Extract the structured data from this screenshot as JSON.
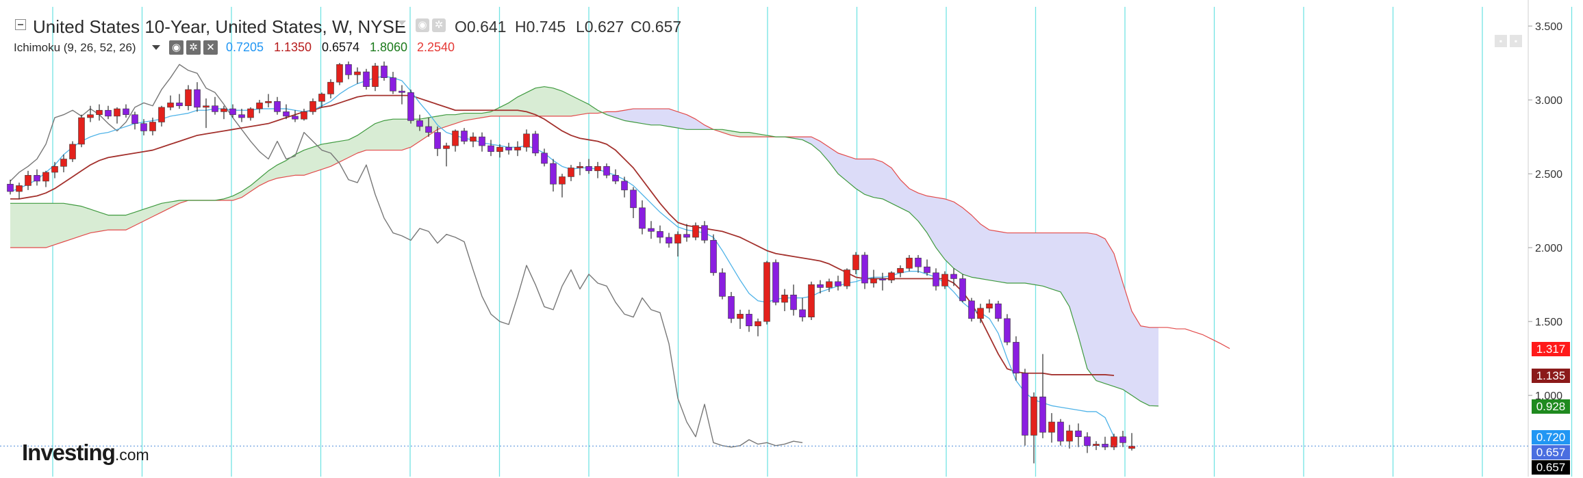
{
  "header": {
    "title": "United States 10-Year, United States, W, NYSE",
    "ohlc": {
      "open": "O0.641",
      "high": "H0.745",
      "low": "L0.627",
      "close": "C0.657"
    },
    "indicator_label": "Ichimoku (9, 26, 52, 26)",
    "indicator_values": [
      {
        "text": "0.7205",
        "color": "#2196f3"
      },
      {
        "text": "1.1350",
        "color": "#b71c1c"
      },
      {
        "text": "0.6574",
        "color": "#111111"
      },
      {
        "text": "1.8060",
        "color": "#1b7a1b"
      },
      {
        "text": "2.2540",
        "color": "#e53935"
      }
    ]
  },
  "icons": {
    "collapse": "collapse-icon",
    "settings": "gear-icon",
    "visibility": "eye-icon",
    "close": "close-icon"
  },
  "logo": {
    "brand": "Investing",
    "suffix": ".com"
  },
  "price_badges": [
    {
      "text": "1.317",
      "value": 1.317,
      "bg": "#ff1a1a",
      "fg": "#ffffff"
    },
    {
      "text": "1.135",
      "value": 1.135,
      "bg": "#8b1a1a",
      "fg": "#ffffff"
    },
    {
      "text": "0.928",
      "value": 0.928,
      "bg": "#1f8a1f",
      "fg": "#ffffff"
    },
    {
      "text": "0.720",
      "value": 0.72,
      "bg": "#2196f3",
      "fg": "#ffffff"
    },
    {
      "text": "0.657",
      "value": 0.657,
      "bg": "#4a6ee0",
      "fg": "#ffffff"
    },
    {
      "text": "0.657",
      "value": 0.657,
      "bg": "#000000",
      "fg": "#ffffff"
    }
  ],
  "colors": {
    "up_candle": "#e3211c",
    "down_candle": "#8a1ee0",
    "tenkan": "#4fb3e8",
    "kijun": "#a3302c",
    "chikou": "#777777",
    "senkou_a": "#3f9a3f",
    "senkou_b": "#e24a4a",
    "kumo_bull": "#d8ecd4",
    "kumo_bear": "#dcdcf8",
    "vertical_grid": "#72e3e3"
  },
  "chart_data": {
    "type": "line",
    "title": "United States 10-Year, United States, W, NYSE",
    "y_axis": {
      "ticks": [
        "3.500",
        "3.000",
        "2.500",
        "2.000",
        "1.500",
        "1.000"
      ],
      "tick_values": [
        3.5,
        3.0,
        2.5,
        2.0,
        1.5,
        1.0
      ],
      "range": [
        0.45,
        3.63
      ],
      "position": "right"
    },
    "vertical_gridlines": 19,
    "horizontal_gridlines": false,
    "candles": [
      [
        2.43,
        2.46,
        2.36,
        2.38
      ],
      [
        2.38,
        2.44,
        2.33,
        2.42
      ],
      [
        2.42,
        2.52,
        2.39,
        2.49
      ],
      [
        2.49,
        2.53,
        2.42,
        2.45
      ],
      [
        2.45,
        2.52,
        2.41,
        2.51
      ],
      [
        2.51,
        2.58,
        2.47,
        2.55
      ],
      [
        2.55,
        2.63,
        2.51,
        2.6
      ],
      [
        2.6,
        2.72,
        2.58,
        2.7
      ],
      [
        2.7,
        2.9,
        2.68,
        2.88
      ],
      [
        2.88,
        2.96,
        2.85,
        2.9
      ],
      [
        2.9,
        2.97,
        2.86,
        2.93
      ],
      [
        2.93,
        2.96,
        2.87,
        2.89
      ],
      [
        2.89,
        2.95,
        2.84,
        2.94
      ],
      [
        2.94,
        2.97,
        2.88,
        2.9
      ],
      [
        2.9,
        2.92,
        2.8,
        2.84
      ],
      [
        2.84,
        2.87,
        2.76,
        2.79
      ],
      [
        2.79,
        2.88,
        2.76,
        2.85
      ],
      [
        2.85,
        2.96,
        2.82,
        2.95
      ],
      [
        2.95,
        3.03,
        2.93,
        2.98
      ],
      [
        2.98,
        3.04,
        2.94,
        2.96
      ],
      [
        2.96,
        3.1,
        2.93,
        3.07
      ],
      [
        3.07,
        3.12,
        2.92,
        2.95
      ],
      [
        2.95,
        3.01,
        2.81,
        2.96
      ],
      [
        2.96,
        3.02,
        2.9,
        2.92
      ],
      [
        2.92,
        2.96,
        2.87,
        2.94
      ],
      [
        2.94,
        2.97,
        2.88,
        2.9
      ],
      [
        2.9,
        2.94,
        2.85,
        2.88
      ],
      [
        2.88,
        2.95,
        2.86,
        2.94
      ],
      [
        2.94,
        3.0,
        2.91,
        2.98
      ],
      [
        2.98,
        3.04,
        2.95,
        2.99
      ],
      [
        2.99,
        3.02,
        2.9,
        2.92
      ],
      [
        2.92,
        2.97,
        2.87,
        2.89
      ],
      [
        2.89,
        2.93,
        2.85,
        2.87
      ],
      [
        2.87,
        2.94,
        2.86,
        2.92
      ],
      [
        2.92,
        3.01,
        2.9,
        2.99
      ],
      [
        2.99,
        3.05,
        2.95,
        3.04
      ],
      [
        3.04,
        3.14,
        3.01,
        3.12
      ],
      [
        3.12,
        3.25,
        3.1,
        3.24
      ],
      [
        3.24,
        3.26,
        3.14,
        3.17
      ],
      [
        3.17,
        3.22,
        3.11,
        3.19
      ],
      [
        3.19,
        3.21,
        3.07,
        3.09
      ],
      [
        3.09,
        3.25,
        3.06,
        3.23
      ],
      [
        3.23,
        3.26,
        3.13,
        3.15
      ],
      [
        3.15,
        3.19,
        3.04,
        3.06
      ],
      [
        3.06,
        3.1,
        2.97,
        3.05
      ],
      [
        3.05,
        3.07,
        2.84,
        2.86
      ],
      [
        2.86,
        2.9,
        2.79,
        2.82
      ],
      [
        2.82,
        2.88,
        2.75,
        2.78
      ],
      [
        2.78,
        2.82,
        2.62,
        2.67
      ],
      [
        2.67,
        2.71,
        2.55,
        2.69
      ],
      [
        2.69,
        2.8,
        2.65,
        2.79
      ],
      [
        2.79,
        2.81,
        2.7,
        2.72
      ],
      [
        2.72,
        2.78,
        2.68,
        2.75
      ],
      [
        2.75,
        2.78,
        2.65,
        2.69
      ],
      [
        2.69,
        2.73,
        2.62,
        2.65
      ],
      [
        2.65,
        2.7,
        2.61,
        2.68
      ],
      [
        2.68,
        2.71,
        2.63,
        2.66
      ],
      [
        2.66,
        2.72,
        2.62,
        2.68
      ],
      [
        2.68,
        2.8,
        2.65,
        2.77
      ],
      [
        2.77,
        2.79,
        2.62,
        2.64
      ],
      [
        2.64,
        2.67,
        2.55,
        2.57
      ],
      [
        2.57,
        2.6,
        2.38,
        2.43
      ],
      [
        2.43,
        2.5,
        2.34,
        2.48
      ],
      [
        2.48,
        2.56,
        2.45,
        2.54
      ],
      [
        2.54,
        2.58,
        2.49,
        2.55
      ],
      [
        2.55,
        2.6,
        2.5,
        2.52
      ],
      [
        2.52,
        2.58,
        2.47,
        2.55
      ],
      [
        2.55,
        2.57,
        2.47,
        2.49
      ],
      [
        2.49,
        2.53,
        2.43,
        2.45
      ],
      [
        2.45,
        2.48,
        2.34,
        2.39
      ],
      [
        2.39,
        2.41,
        2.2,
        2.27
      ],
      [
        2.27,
        2.32,
        2.09,
        2.13
      ],
      [
        2.13,
        2.18,
        2.06,
        2.11
      ],
      [
        2.11,
        2.15,
        2.03,
        2.07
      ],
      [
        2.07,
        2.1,
        2.0,
        2.03
      ],
      [
        2.03,
        2.11,
        1.94,
        2.09
      ],
      [
        2.09,
        2.16,
        2.04,
        2.07
      ],
      [
        2.07,
        2.17,
        2.05,
        2.15
      ],
      [
        2.15,
        2.18,
        2.03,
        2.05
      ],
      [
        2.05,
        2.09,
        1.81,
        1.83
      ],
      [
        1.83,
        1.86,
        1.65,
        1.67
      ],
      [
        1.67,
        1.7,
        1.49,
        1.52
      ],
      [
        1.52,
        1.58,
        1.45,
        1.55
      ],
      [
        1.55,
        1.58,
        1.43,
        1.47
      ],
      [
        1.47,
        1.52,
        1.4,
        1.5
      ],
      [
        1.5,
        1.91,
        1.48,
        1.9
      ],
      [
        1.9,
        1.92,
        1.61,
        1.63
      ],
      [
        1.63,
        1.72,
        1.57,
        1.68
      ],
      [
        1.68,
        1.75,
        1.54,
        1.58
      ],
      [
        1.58,
        1.66,
        1.5,
        1.53
      ],
      [
        1.53,
        1.77,
        1.51,
        1.75
      ],
      [
        1.75,
        1.78,
        1.69,
        1.73
      ],
      [
        1.73,
        1.79,
        1.7,
        1.77
      ],
      [
        1.77,
        1.81,
        1.71,
        1.74
      ],
      [
        1.74,
        1.86,
        1.72,
        1.85
      ],
      [
        1.85,
        1.97,
        1.82,
        1.95
      ],
      [
        1.95,
        1.97,
        1.72,
        1.76
      ],
      [
        1.76,
        1.85,
        1.73,
        1.79
      ],
      [
        1.79,
        1.83,
        1.71,
        1.78
      ],
      [
        1.78,
        1.84,
        1.76,
        1.83
      ],
      [
        1.83,
        1.88,
        1.8,
        1.86
      ],
      [
        1.86,
        1.95,
        1.84,
        1.93
      ],
      [
        1.93,
        1.95,
        1.83,
        1.87
      ],
      [
        1.87,
        1.92,
        1.81,
        1.83
      ],
      [
        1.83,
        1.86,
        1.71,
        1.74
      ],
      [
        1.74,
        1.84,
        1.72,
        1.82
      ],
      [
        1.82,
        1.86,
        1.74,
        1.79
      ],
      [
        1.79,
        1.82,
        1.63,
        1.64
      ],
      [
        1.64,
        1.66,
        1.5,
        1.52
      ],
      [
        1.52,
        1.62,
        1.49,
        1.59
      ],
      [
        1.59,
        1.65,
        1.56,
        1.62
      ],
      [
        1.62,
        1.64,
        1.5,
        1.52
      ],
      [
        1.52,
        1.55,
        1.34,
        1.36
      ],
      [
        1.36,
        1.4,
        1.1,
        1.15
      ],
      [
        1.15,
        1.18,
        0.66,
        0.73
      ],
      [
        0.73,
        1.02,
        0.54,
        0.99
      ],
      [
        0.99,
        1.28,
        0.71,
        0.75
      ],
      [
        0.75,
        0.88,
        0.68,
        0.82
      ],
      [
        0.82,
        0.84,
        0.66,
        0.69
      ],
      [
        0.69,
        0.8,
        0.64,
        0.76
      ],
      [
        0.76,
        0.81,
        0.65,
        0.72
      ],
      [
        0.72,
        0.75,
        0.61,
        0.66
      ],
      [
        0.66,
        0.69,
        0.63,
        0.67
      ],
      [
        0.67,
        0.72,
        0.63,
        0.65
      ],
      [
        0.65,
        0.74,
        0.63,
        0.72
      ],
      [
        0.72,
        0.76,
        0.65,
        0.68
      ],
      [
        0.641,
        0.745,
        0.627,
        0.657
      ]
    ],
    "chikou": [
      2.45,
      2.51,
      2.55,
      2.6,
      2.7,
      2.88,
      2.9,
      2.93,
      2.89,
      2.94,
      2.9,
      2.84,
      2.79,
      2.85,
      2.95,
      2.98,
      2.96,
      3.07,
      3.15,
      3.24,
      3.2,
      3.18,
      3.08,
      3.05,
      2.97,
      2.88,
      2.8,
      2.72,
      2.65,
      2.6,
      2.72,
      2.6,
      2.62,
      2.78,
      2.72,
      2.66,
      2.64,
      2.57,
      2.46,
      2.44,
      2.56,
      2.36,
      2.2,
      2.1,
      2.08,
      2.05,
      2.13,
      2.11,
      2.03,
      2.09,
      2.07,
      2.04,
      1.85,
      1.67,
      1.55,
      1.5,
      1.48,
      1.67,
      1.88,
      1.75,
      1.6,
      1.58,
      1.74,
      1.85,
      1.72,
      1.82,
      1.76,
      1.74,
      1.63,
      1.55,
      1.53,
      1.66,
      1.58,
      1.56,
      1.35,
      0.98,
      0.82,
      0.72,
      0.94,
      0.68,
      0.66,
      0.65,
      0.66,
      0.7,
      0.67,
      0.68,
      0.66,
      0.67,
      0.69,
      0.68
    ],
    "tenkan": [
      2.38,
      2.4,
      2.43,
      2.46,
      2.51,
      2.56,
      2.63,
      2.68,
      2.72,
      2.75,
      2.77,
      2.78,
      2.8,
      2.82,
      2.84,
      2.85,
      2.86,
      2.87,
      2.89,
      2.9,
      2.91,
      2.93,
      2.93,
      2.94,
      2.94,
      2.93,
      2.93,
      2.93,
      2.94,
      2.94,
      2.94,
      2.94,
      2.93,
      2.92,
      2.93,
      2.96,
      2.99,
      3.04,
      3.08,
      3.11,
      3.13,
      3.15,
      3.16,
      3.15,
      3.13,
      3.06,
      2.98,
      2.91,
      2.83,
      2.78,
      2.76,
      2.74,
      2.73,
      2.71,
      2.7,
      2.69,
      2.68,
      2.68,
      2.69,
      2.67,
      2.64,
      2.59,
      2.55,
      2.53,
      2.54,
      2.54,
      2.53,
      2.51,
      2.49,
      2.46,
      2.42,
      2.36,
      2.3,
      2.24,
      2.19,
      2.14,
      2.12,
      2.11,
      2.1,
      2.07,
      1.98,
      1.88,
      1.78,
      1.69,
      1.64,
      1.63,
      1.65,
      1.66,
      1.66,
      1.66,
      1.67,
      1.7,
      1.72,
      1.74,
      1.76,
      1.77,
      1.79,
      1.8,
      1.8,
      1.81,
      1.83,
      1.84,
      1.84,
      1.82,
      1.8,
      1.76,
      1.7,
      1.63,
      1.58,
      1.56,
      1.52,
      1.42,
      1.25,
      1.1,
      1.02,
      0.97,
      0.95,
      0.93,
      0.92,
      0.91,
      0.9,
      0.89,
      0.89,
      0.85,
      0.72
    ],
    "kijun": [
      2.33,
      2.33,
      2.34,
      2.35,
      2.37,
      2.4,
      2.44,
      2.48,
      2.52,
      2.56,
      2.59,
      2.61,
      2.62,
      2.63,
      2.64,
      2.65,
      2.66,
      2.68,
      2.7,
      2.72,
      2.74,
      2.76,
      2.77,
      2.78,
      2.79,
      2.8,
      2.81,
      2.82,
      2.83,
      2.84,
      2.86,
      2.88,
      2.9,
      2.92,
      2.93,
      2.95,
      2.96,
      2.98,
      3.0,
      3.02,
      3.03,
      3.03,
      3.03,
      3.03,
      3.03,
      3.03,
      3.01,
      2.99,
      2.97,
      2.95,
      2.93,
      2.93,
      2.93,
      2.93,
      2.93,
      2.93,
      2.93,
      2.93,
      2.92,
      2.9,
      2.87,
      2.83,
      2.79,
      2.76,
      2.74,
      2.73,
      2.72,
      2.7,
      2.66,
      2.6,
      2.54,
      2.46,
      2.38,
      2.3,
      2.23,
      2.17,
      2.15,
      2.14,
      2.13,
      2.12,
      2.11,
      2.09,
      2.07,
      2.04,
      2.01,
      1.98,
      1.96,
      1.95,
      1.94,
      1.93,
      1.92,
      1.91,
      1.89,
      1.86,
      1.83,
      1.8,
      1.79,
      1.79,
      1.79,
      1.79,
      1.79,
      1.79,
      1.79,
      1.79,
      1.79,
      1.79,
      1.76,
      1.7,
      1.62,
      1.52,
      1.4,
      1.28,
      1.18,
      1.16,
      1.15,
      1.15,
      1.15,
      1.14,
      1.14,
      1.14,
      1.14,
      1.14,
      1.14,
      1.14,
      1.135
    ],
    "senkou_a": [
      2.3,
      2.3,
      2.3,
      2.3,
      2.3,
      2.3,
      2.3,
      2.29,
      2.28,
      2.26,
      2.24,
      2.22,
      2.22,
      2.22,
      2.24,
      2.26,
      2.28,
      2.3,
      2.31,
      2.32,
      2.32,
      2.32,
      2.32,
      2.32,
      2.33,
      2.35,
      2.38,
      2.42,
      2.47,
      2.52,
      2.56,
      2.59,
      2.63,
      2.66,
      2.68,
      2.7,
      2.71,
      2.72,
      2.73,
      2.76,
      2.8,
      2.84,
      2.86,
      2.87,
      2.87,
      2.87,
      2.87,
      2.88,
      2.89,
      2.9,
      2.9,
      2.91,
      2.91,
      2.91,
      2.92,
      2.95,
      2.98,
      3.02,
      3.05,
      3.08,
      3.09,
      3.08,
      3.06,
      3.03,
      3.0,
      2.97,
      2.93,
      2.9,
      2.88,
      2.86,
      2.85,
      2.84,
      2.83,
      2.83,
      2.82,
      2.81,
      2.8,
      2.8,
      2.8,
      2.8,
      2.8,
      2.79,
      2.78,
      2.78,
      2.77,
      2.76,
      2.75,
      2.75,
      2.74,
      2.73,
      2.7,
      2.65,
      2.58,
      2.5,
      2.45,
      2.4,
      2.36,
      2.34,
      2.33,
      2.3,
      2.27,
      2.24,
      2.18,
      2.1,
      2.0,
      1.92,
      1.86,
      1.82,
      1.8,
      1.79,
      1.78,
      1.77,
      1.76,
      1.76,
      1.76,
      1.75,
      1.74,
      1.72,
      1.7,
      1.6,
      1.4,
      1.18,
      1.1,
      1.08,
      1.06,
      1.04,
      1.0,
      0.96,
      0.93,
      0.928
    ],
    "senkou_b": [
      2.0,
      2.0,
      2.0,
      2.0,
      2.0,
      2.02,
      2.04,
      2.06,
      2.08,
      2.1,
      2.11,
      2.12,
      2.12,
      2.12,
      2.15,
      2.18,
      2.21,
      2.24,
      2.27,
      2.3,
      2.32,
      2.32,
      2.32,
      2.32,
      2.32,
      2.32,
      2.34,
      2.38,
      2.42,
      2.45,
      2.47,
      2.48,
      2.49,
      2.49,
      2.51,
      2.53,
      2.55,
      2.58,
      2.61,
      2.64,
      2.66,
      2.66,
      2.66,
      2.66,
      2.66,
      2.68,
      2.72,
      2.76,
      2.8,
      2.82,
      2.84,
      2.86,
      2.87,
      2.88,
      2.89,
      2.89,
      2.89,
      2.89,
      2.89,
      2.89,
      2.89,
      2.89,
      2.89,
      2.89,
      2.9,
      2.91,
      2.91,
      2.92,
      2.92,
      2.93,
      2.94,
      2.94,
      2.94,
      2.94,
      2.94,
      2.92,
      2.9,
      2.87,
      2.83,
      2.8,
      2.78,
      2.76,
      2.75,
      2.75,
      2.75,
      2.75,
      2.75,
      2.75,
      2.75,
      2.75,
      2.75,
      2.72,
      2.68,
      2.64,
      2.62,
      2.6,
      2.6,
      2.6,
      2.58,
      2.54,
      2.46,
      2.4,
      2.37,
      2.35,
      2.34,
      2.33,
      2.31,
      2.27,
      2.22,
      2.16,
      2.12,
      2.11,
      2.1,
      2.1,
      2.1,
      2.1,
      2.1,
      2.1,
      2.1,
      2.1,
      2.1,
      2.1,
      2.09,
      2.06,
      1.96,
      1.76,
      1.57,
      1.47,
      1.46,
      1.46,
      1.46,
      1.45,
      1.45,
      1.43,
      1.41,
      1.38,
      1.35,
      1.317
    ]
  }
}
